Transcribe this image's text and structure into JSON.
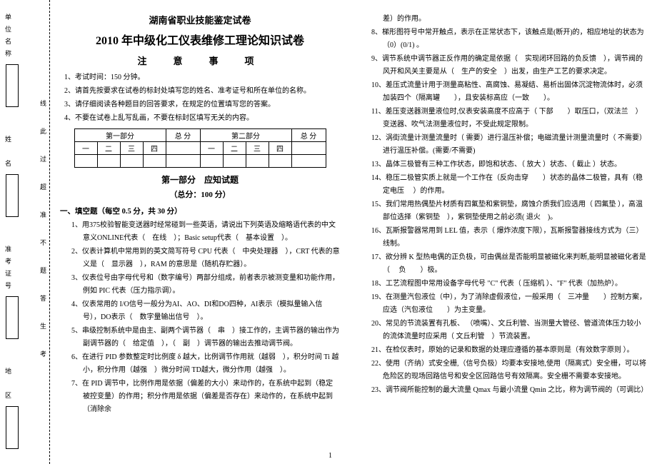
{
  "margin": {
    "boxes": [
      "单位名称",
      "姓　名",
      "准考证号",
      "地　区"
    ],
    "dashed_text": "线 此 过 超 准 不 题 答 生 考"
  },
  "header": {
    "line1": "湖南省职业技能鉴定试卷",
    "line2": "2010 年中级化工仪表维修工理论知识试卷",
    "line3": "注　意　事　项"
  },
  "instructions": [
    "1、考试时间：150 分钟。",
    "2、请首先按要求在试卷的标封处填写您的姓名、准考证号和所在单位的名称。",
    "3、请仔细阅读各种题目的回答要求，在规定的位置填写您的答案。",
    "4、不要在试卷上乱写乱画，不要在标封区填写无关的内容。"
  ],
  "table": {
    "h1": "第一部分",
    "h2": "总 分",
    "h3": "第二部分",
    "h4": "总 分",
    "c1": "一",
    "c2": "二",
    "c3": "三",
    "c4": "四"
  },
  "part1": {
    "title": "第一部分　应知试题",
    "sub": "（总分：100 分）"
  },
  "sectionA": "一、填空题（每空 0.5 分，共 30 分）",
  "q": [
    "1、用375校验智能变送器时经常碰到一些英语，请说出下列英语及缩略语代表的中文意义ONLINE代表（　在线　）；Basic setup代表（　基本设置　）。",
    "2、仪表计算机中常用到的英文简写符号 CPU 代表（　中央处理器　），CRT 代表的意义是（　显示器　），RAM 的意思是（随机存贮器）。",
    "3、仪表位号由字母代号和（数字编号）两部分组成，前者表示被测变量和功能作用，例如 PIC 代表（压力指示调）。",
    "4、仪表常用的 I/O信号一般分为AI、AO、DI和DO四种，AI表示（模拟量输入信号），DO表示（　数字量输出信号　）。",
    "5、串级控制系统中是由主、副两个调节器（　串　）接工作的，主调节器的输出作为副调节器的（　给定值　），（　副　）调节器的输出去推动调节阀。",
    "6、在进行 PID 参数整定时比例度 δ 越大，比例调节作用就（越弱　），积分时间 Ti 越小，积分作用（越强　）微分时间 TD越大，微分作用（越强　）。",
    "7、在 PID 调节中，比例作用是依据（偏差的大小）来动作的，在系统中起到（稳定被控变量）的作用；积分作用是依据（偏差是否存在）来动作的，在系统中起到（消除余"
  ],
  "q_right": [
    "差）的作用。",
    "8、梯形图符号中常开触点，表示在正常状态下，该触点是(断开)的，相应地址的状态为（0）(0/1) 。",
    "9、调节系统中调节器正反作用的确定是依据（　实现闭环回路的负反馈　），调节阀的风开和风关主要是从（　生产的安全　）出发，由生产工艺的要求决定。",
    "10、差压式流量计用于测量高粘性、高腐蚀、易凝结、易析出固体沉淀物流体时，必须加装四个（隔离罐　　），且安装标高应（一致　　）。",
    "11、差压变送器测量液位时,仪表安装高度不应高于（  下部　　）取压口，（双法兰　）变送器、吹气法测量液位时，不受此规定限制。",
    "12、涡街流量计测量流量时（  需要）进行温压补偿；电磁流量计测量流量时（  不需要）进行温压补偿。(需要/不需要)",
    "13、晶体三极管有三种工作状态，即饱和状态、（  放大  ）状态、（ 截止  ）状态。",
    "14、稳压二极管实质上就是一个工作在（反向击穿　　）状态的晶体二极管，具有（稳定电压　 ）的作用。",
    "15、我们常用热偶垫片材质有四氟垫和紫铜垫，腐蚀介质我们应选用（ 四氟垫 ），高温部位选择（紫铜垫　），紫铜垫使用之前必须(   退火　)。",
    "16、瓦斯报警器常用到 LEL 值，表示（  爆炸浓度下限），瓦斯报警器接线方式为（三）线制。",
    "17、欲分辨 K 型热电偶的正负极，可由偶丝是否能明显被磁化来判断,能明显被磁化者是（  　负　　）极。",
    "18、工艺流程图中常用设备字母代号 \"C\" 代表（ 压缩机 ）、\"F\" 代表（加热炉）。",
    "19、在测量汽包液位（中），为了消除虚假液位，一般采用（　三冲量　　）控制方案，应选（汽包液位　　）为主变量。",
    "20、常见的节流装置有孔板、 （喷嘴）、文丘利管、当测量大管径、管道流体压力较小的流体流量时应采用（ 文丘利管　）节流装置。",
    "21、在检仪表时，原始的记录和数据的处理应遵循的基本原则是（有效数字原则 ）。",
    "22、使用（齐纳）式安全栅,（信号负极）均要本安接地,使用（隔离式）安全栅，可以将危险区的现场回路信号和安全区回路信号有效隔离。安全栅不需要本安接地。",
    "23、调节阀所能控制的最大流量 Qmax 与最小流量 Qmin 之比，称为调节阀的（可调比）"
  ],
  "pagenum": "1"
}
